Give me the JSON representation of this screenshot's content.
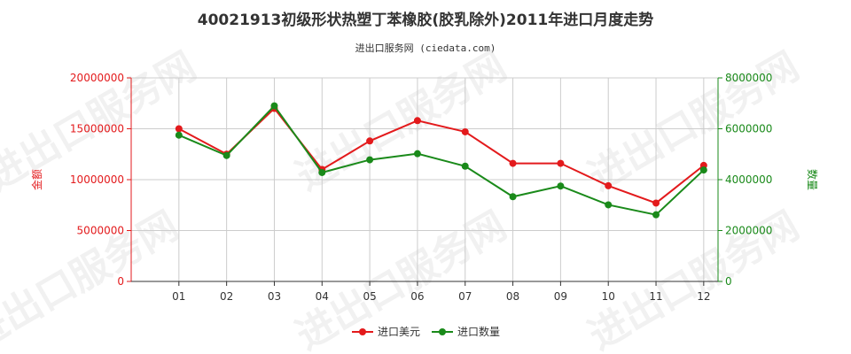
{
  "title": "40021913初级形状热塑丁苯橡胶(胶乳除外)2011年进口月度走势",
  "subtitle": "进出口服务网 (ciedata.com)",
  "watermark": "进出口服务网",
  "colors": {
    "value": "#e31a1c",
    "quantity": "#1a8a1a",
    "grid": "#cccccc",
    "axis": "#333333"
  },
  "chart_data": {
    "type": "line",
    "categories": [
      "01",
      "02",
      "03",
      "04",
      "05",
      "06",
      "07",
      "08",
      "09",
      "10",
      "11",
      "12"
    ],
    "series": [
      {
        "name": "进口美元",
        "axis": "left",
        "values": [
          15000000,
          12500000,
          17000000,
          11000000,
          13800000,
          15800000,
          14700000,
          11600000,
          11600000,
          9400000,
          7700000,
          11400000
        ]
      },
      {
        "name": "进口数量",
        "axis": "right",
        "values": [
          5750000,
          4950000,
          6900000,
          4280000,
          4780000,
          5020000,
          4530000,
          3330000,
          3750000,
          3010000,
          2620000,
          4380000
        ]
      }
    ],
    "ylabel_left": "金额",
    "ylabel_right": "数量",
    "yticks_left": [
      "0",
      "5000000",
      "10000000",
      "15000000",
      "20000000"
    ],
    "yticks_right": [
      "0",
      "2000000",
      "4000000",
      "6000000",
      "8000000"
    ],
    "ylim_left": [
      0,
      20000000
    ],
    "ylim_right": [
      0,
      8000000
    ],
    "grid": true,
    "legend": "bottom-center"
  }
}
